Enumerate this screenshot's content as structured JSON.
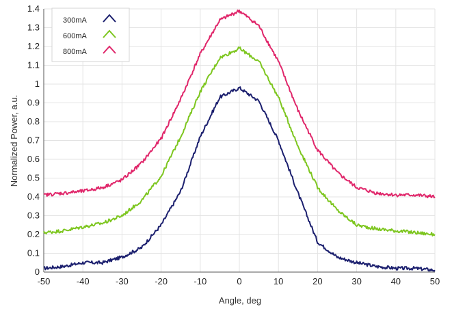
{
  "chart_data": {
    "type": "line",
    "xlabel": "Angle, deg",
    "ylabel": "Normalized Power, a.u.",
    "xlim": [
      -50,
      50
    ],
    "ylim": [
      0,
      1.4
    ],
    "xticks": [
      -50,
      -40,
      -30,
      -20,
      -10,
      0,
      10,
      20,
      30,
      40,
      50
    ],
    "yticks": [
      0,
      0.1,
      0.2,
      0.3,
      0.4,
      0.5,
      0.6,
      0.7,
      0.8,
      0.9,
      1,
      1.1,
      1.2,
      1.3,
      1.4
    ],
    "grid": true,
    "legend": "top-left",
    "series": [
      {
        "name": "300mA",
        "color": "#1b1f6e",
        "x": [
          -50,
          -45,
          -40,
          -35,
          -30,
          -25,
          -20,
          -15,
          -10,
          -5,
          0,
          5,
          10,
          15,
          20,
          25,
          30,
          35,
          40,
          45,
          50
        ],
        "y": [
          0.02,
          0.03,
          0.05,
          0.05,
          0.08,
          0.13,
          0.25,
          0.43,
          0.72,
          0.93,
          0.98,
          0.91,
          0.7,
          0.42,
          0.16,
          0.08,
          0.05,
          0.03,
          0.02,
          0.02,
          0.01
        ]
      },
      {
        "name": "600mA",
        "color": "#7dc61f",
        "x": [
          -50,
          -45,
          -40,
          -35,
          -30,
          -25,
          -20,
          -15,
          -10,
          -5,
          0,
          5,
          10,
          15,
          20,
          25,
          30,
          35,
          40,
          45,
          50
        ],
        "y": [
          0.21,
          0.22,
          0.24,
          0.26,
          0.3,
          0.38,
          0.51,
          0.72,
          0.96,
          1.14,
          1.19,
          1.12,
          0.93,
          0.67,
          0.45,
          0.33,
          0.25,
          0.23,
          0.22,
          0.21,
          0.2
        ]
      },
      {
        "name": "800mA",
        "color": "#e0266a",
        "x": [
          -50,
          -45,
          -40,
          -35,
          -30,
          -25,
          -20,
          -15,
          -10,
          -5,
          0,
          5,
          10,
          15,
          20,
          25,
          30,
          35,
          40,
          45,
          50
        ],
        "y": [
          0.41,
          0.42,
          0.43,
          0.45,
          0.49,
          0.58,
          0.71,
          0.92,
          1.16,
          1.34,
          1.39,
          1.31,
          1.12,
          0.86,
          0.65,
          0.53,
          0.45,
          0.42,
          0.41,
          0.41,
          0.4
        ]
      }
    ]
  }
}
